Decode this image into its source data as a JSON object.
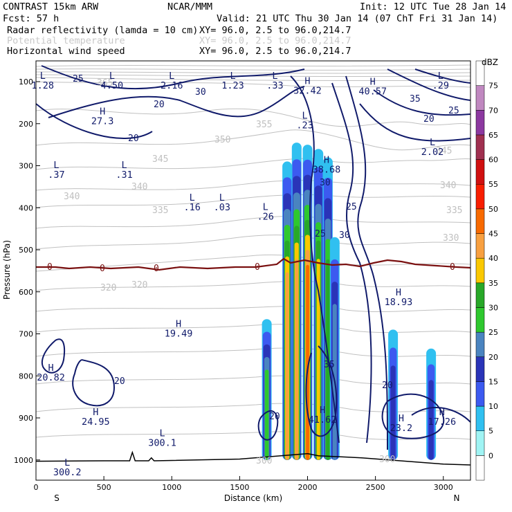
{
  "header": {
    "model": "CONTRAST 15km ARW",
    "center": "NCAR/MMM",
    "init": "Init: 12 UTC Tue 28 Jan 14",
    "fcst": "Fcst:    57 h",
    "valid": "Valid: 21 UTC Thu 30 Jan 14 (07 ChT Fri 31 Jan 14)"
  },
  "fields": [
    {
      "name": "Radar reflectivity (lamda = 10 cm)",
      "xy": "XY=  96.0,  2.5 to  96.0,214.7",
      "color": "#000000"
    },
    {
      "name": "Potential temperature",
      "xy": "XY=  96.0,  2.5 to  96.0,214.7",
      "color": "#c8c8c8"
    },
    {
      "name": "Horizontal wind speed",
      "xy": "XY=  96.0,  2.5 to  96.0,214.7",
      "color": "#000000"
    }
  ],
  "chart_data": {
    "type": "cross-section",
    "xlabel": "Distance (km)",
    "ylabel": "Pressure (hPa)",
    "xlim": [
      0,
      3200
    ],
    "ylim": [
      1050,
      80
    ],
    "x_ticks": [
      0,
      500,
      1000,
      1500,
      2000,
      2500,
      3000
    ],
    "y_ticks": [
      100,
      200,
      300,
      400,
      500,
      600,
      700,
      800,
      900,
      1000
    ],
    "x_end_labels": {
      "left": "S",
      "right": "N"
    },
    "colorbar": {
      "units": "dBZ",
      "levels": [
        "0",
        "5",
        "10",
        "15",
        "20",
        "25",
        "30",
        "35",
        "40",
        "45",
        "50",
        "55",
        "60",
        "65",
        "70",
        "75"
      ],
      "colors": [
        "#ffffff",
        "#a0f4f4",
        "#30c0f0",
        "#3c5af0",
        "#2a34b8",
        "#4a84c0",
        "#2ec82e",
        "#28a828",
        "#fac800",
        "#f8a040",
        "#f86a00",
        "#f81e00",
        "#d01010",
        "#a03050",
        "#8c38a0",
        "#c088c0",
        "#ffffff"
      ]
    },
    "reflectivity_cells": [
      {
        "x": 1700,
        "top_hPa": 665,
        "peak_dBZ": 25
      },
      {
        "x": 1850,
        "top_hPa": 290,
        "peak_dBZ": 40
      },
      {
        "x": 1920,
        "top_hPa": 245,
        "peak_dBZ": 40
      },
      {
        "x": 2000,
        "top_hPa": 250,
        "peak_dBZ": 45
      },
      {
        "x": 2080,
        "top_hPa": 260,
        "peak_dBZ": 35
      },
      {
        "x": 2150,
        "top_hPa": 280,
        "peak_dBZ": 30
      },
      {
        "x": 2200,
        "top_hPa": 470,
        "peak_dBZ": 20
      },
      {
        "x": 2630,
        "top_hPa": 690,
        "peak_dBZ": 15
      },
      {
        "x": 2910,
        "top_hPa": 735,
        "peak_dBZ": 15
      }
    ],
    "wind_speed_contour_labels": [
      "20",
      "25",
      "30",
      "35"
    ],
    "theta_contour_labels": [
      "300",
      "310",
      "320",
      "330",
      "335",
      "340",
      "345",
      "350",
      "355",
      "365"
    ],
    "zero_isotherm": {
      "label": "0",
      "pressure_hPa": 548
    },
    "extrema": [
      {
        "type": "L",
        "value": "1.28",
        "x": 50,
        "p": 100
      },
      {
        "type": "L",
        "value": "4.50",
        "x": 560,
        "p": 100
      },
      {
        "type": "L",
        "value": "2.16",
        "x": 1000,
        "p": 100
      },
      {
        "type": "L",
        "value": "1.23",
        "x": 1450,
        "p": 100
      },
      {
        "type": "L",
        "value": ".33",
        "x": 1760,
        "p": 100
      },
      {
        "type": "H",
        "value": "32.42",
        "x": 2000,
        "p": 112
      },
      {
        "type": "H",
        "value": "40.57",
        "x": 2480,
        "p": 114
      },
      {
        "type": "L",
        "value": ".29",
        "x": 2980,
        "p": 100
      },
      {
        "type": "H",
        "value": "27.3",
        "x": 490,
        "p": 185
      },
      {
        "type": "L",
        "value": ".23",
        "x": 1980,
        "p": 195
      },
      {
        "type": "H",
        "value": "38.68",
        "x": 2140,
        "p": 300
      },
      {
        "type": "L",
        "value": "2.02",
        "x": 2920,
        "p": 258
      },
      {
        "type": "L",
        "value": ".37",
        "x": 150,
        "p": 312
      },
      {
        "type": "L",
        "value": ".31",
        "x": 650,
        "p": 312
      },
      {
        "type": "L",
        "value": ".16",
        "x": 1150,
        "p": 390
      },
      {
        "type": "L",
        "value": ".03",
        "x": 1370,
        "p": 390
      },
      {
        "type": "L",
        "value": ".26",
        "x": 1690,
        "p": 412
      },
      {
        "type": "H",
        "value": "18.93",
        "x": 2670,
        "p": 615
      },
      {
        "type": "H",
        "value": "19.49",
        "x": 1050,
        "p": 690
      },
      {
        "type": "H",
        "value": "20.82",
        "x": 110,
        "p": 795
      },
      {
        "type": "H",
        "value": "24.95",
        "x": 440,
        "p": 900
      },
      {
        "type": "H",
        "value": "41.62",
        "x": 2110,
        "p": 895
      },
      {
        "type": "H",
        "value": "23.2",
        "x": 2690,
        "p": 915
      },
      {
        "type": "H",
        "value": "17.26",
        "x": 2990,
        "p": 900
      },
      {
        "type": "L",
        "value": "300.1",
        "x": 930,
        "p": 950
      },
      {
        "type": "L",
        "value": "300.2",
        "x": 230,
        "p": 1020
      }
    ],
    "terrain": [
      [
        0,
        1003
      ],
      [
        500,
        1002
      ],
      [
        690,
        1002
      ],
      [
        710,
        982
      ],
      [
        730,
        1002
      ],
      [
        830,
        1002
      ],
      [
        850,
        995
      ],
      [
        870,
        1002
      ],
      [
        1500,
        998
      ],
      [
        2000,
        985
      ],
      [
        2080,
        990
      ],
      [
        2400,
        995
      ],
      [
        3000,
        1010
      ],
      [
        3200,
        1012
      ]
    ]
  }
}
